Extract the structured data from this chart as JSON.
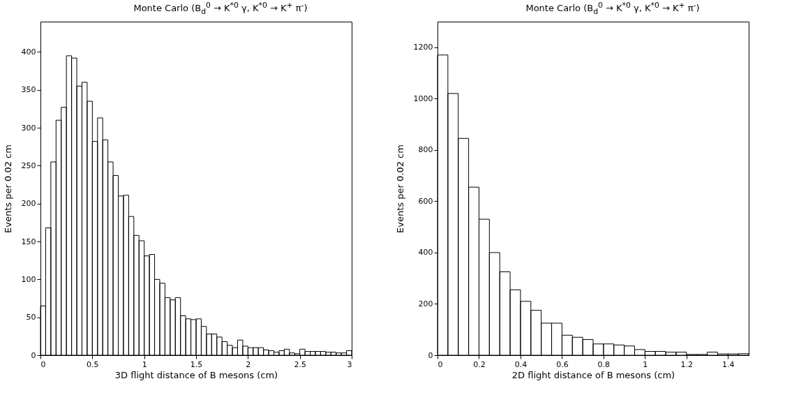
{
  "chart_data": [
    {
      "type": "histogram",
      "title": "Monte Carlo (B$_{d}$$^{0}$ → K$^{*0}$ γ, K$^{*0}$ → K$^{+}$ π$^{-}$)",
      "xlabel": "3D flight distance of B mesons (cm)",
      "ylabel": "Events per 0.02 cm",
      "bins": [
        0,
        0.05,
        0.1,
        0.15,
        0.2,
        0.25,
        0.3,
        0.35,
        0.4,
        0.45,
        0.5,
        0.55,
        0.6,
        0.65,
        0.7,
        0.75,
        0.8,
        0.85,
        0.9,
        0.95,
        1,
        1.05,
        1.1,
        1.15,
        1.2,
        1.25,
        1.3,
        1.35,
        1.4,
        1.45,
        1.5,
        1.55,
        1.6,
        1.65,
        1.7,
        1.75,
        1.8,
        1.85,
        1.9,
        1.95,
        2,
        2.05,
        2.1,
        2.15,
        2.2,
        2.25,
        2.3,
        2.35,
        2.4,
        2.45,
        2.5,
        2.55,
        2.6,
        2.65,
        2.7,
        2.75,
        2.8,
        2.85,
        2.9,
        2.95,
        3
      ],
      "values": [
        65,
        168,
        255,
        310,
        327,
        395,
        392,
        355,
        360,
        335,
        282,
        313,
        284,
        255,
        237,
        210,
        211,
        183,
        158,
        151,
        131,
        133,
        100,
        95,
        76,
        73,
        76,
        52,
        48,
        47,
        48,
        38,
        28,
        28,
        24,
        18,
        13,
        10,
        20,
        12,
        10,
        10,
        10,
        7,
        6,
        4,
        6,
        8,
        3,
        2,
        8,
        5,
        5,
        5,
        5,
        4,
        4,
        3,
        3,
        6
      ],
      "color": "#000000",
      "xlim": [
        0,
        3
      ],
      "xticks": [
        0,
        0.5,
        1,
        1.5,
        2,
        2.5,
        3
      ],
      "ylim": [
        0,
        440
      ],
      "yticks": [
        0,
        50,
        100,
        150,
        200,
        250,
        300,
        350,
        400
      ],
      "grid": false
    },
    {
      "type": "histogram",
      "title": "Monte Carlo (B$_{d}$$^{0}$ → K$^{*0}$ γ, K$^{*0}$ → K$^{+}$ π$^{-}$)",
      "xlabel": "2D flight distance of B mesons (cm)",
      "ylabel": "Events per 0.02 cm",
      "bins": [
        0,
        0.05,
        0.1,
        0.15,
        0.2,
        0.25,
        0.3,
        0.35,
        0.4,
        0.45,
        0.5,
        0.55,
        0.6,
        0.65,
        0.7,
        0.75,
        0.8,
        0.85,
        0.9,
        0.95,
        1,
        1.05,
        1.1,
        1.15,
        1.2,
        1.25,
        1.3,
        1.35,
        1.4,
        1.45,
        1.5
      ],
      "values": [
        1170,
        1020,
        845,
        655,
        530,
        400,
        325,
        255,
        210,
        175,
        125,
        125,
        78,
        70,
        61,
        44,
        44,
        40,
        36,
        22,
        15,
        15,
        12,
        12,
        3,
        3,
        12,
        5,
        5,
        6
      ],
      "color": "#000000",
      "xlim": [
        0,
        1.5
      ],
      "xticks": [
        0,
        0.2,
        0.4,
        0.6,
        0.8,
        1,
        1.2,
        1.4
      ],
      "ylim": [
        0,
        1300
      ],
      "yticks": [
        0,
        200,
        400,
        600,
        800,
        1000,
        1200
      ],
      "grid": false
    }
  ]
}
